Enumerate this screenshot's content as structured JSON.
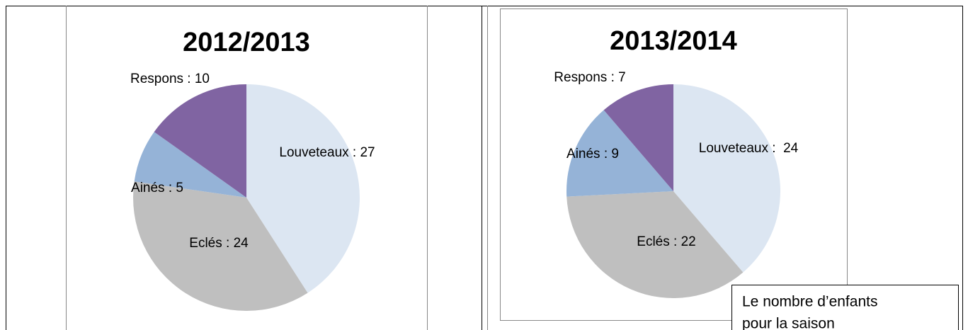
{
  "chart_data": [
    {
      "type": "pie",
      "title": "2012/2013",
      "values": [
        27,
        24,
        5,
        10
      ],
      "value_labels": [
        "Louveteaux : 27",
        "Eclés : 24",
        "Ainés : 5",
        "Respons : 10"
      ],
      "colors": [
        "#dce6f2",
        "#bfbfbf",
        "#95b3d7",
        "#8064a2"
      ]
    },
    {
      "type": "pie",
      "title": "2013/2014",
      "values": [
        24,
        22,
        9,
        7
      ],
      "value_labels": [
        "Louveteaux :  24",
        "Eclés : 22",
        "Ainés : 9",
        "Respons : 7"
      ],
      "colors": [
        "#dce6f2",
        "#bfbfbf",
        "#95b3d7",
        "#8064a2"
      ]
    }
  ],
  "textbox": {
    "lines": [
      "Le nombre d’enfants",
      "pour la saison"
    ]
  }
}
